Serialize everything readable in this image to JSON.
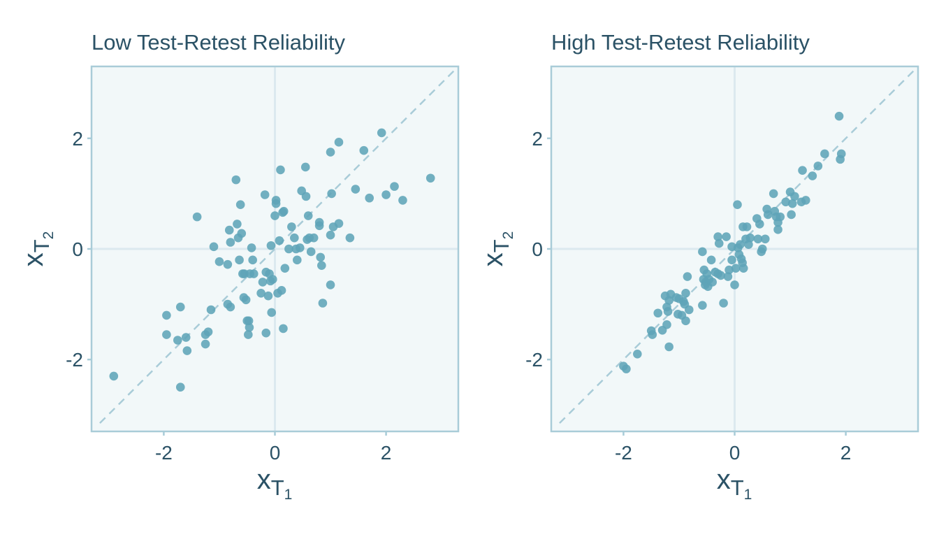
{
  "colors": {
    "panel_bg": "#f2f8f9",
    "panel_border": "#a9ccd8",
    "zero_line": "#dce9ef",
    "diagonal": "#a9ccd8",
    "point": "#5ea4b7",
    "text": "#2b5266"
  },
  "axis_labels": {
    "x": {
      "base": "x",
      "sub": "T",
      "subsub": "1"
    },
    "y": {
      "base": "x",
      "sub": "T",
      "subsub": "2"
    }
  },
  "chart_data": [
    {
      "type": "scatter",
      "title": "Low Test-Retest Reliability",
      "xlim": [
        -3.3,
        3.3
      ],
      "ylim": [
        -3.3,
        3.3
      ],
      "xticks": [
        {
          "value": -2,
          "label": "-2"
        },
        {
          "value": 0,
          "label": "0"
        },
        {
          "value": 2,
          "label": "2"
        }
      ],
      "yticks": [
        {
          "value": -2,
          "label": "-2"
        },
        {
          "value": 0,
          "label": "0"
        },
        {
          "value": 2,
          "label": "2"
        }
      ],
      "reference_line": "y = x",
      "points": [
        [
          -2.9,
          -2.3
        ],
        [
          -1.7,
          -2.5
        ],
        [
          -1.95,
          -1.2
        ],
        [
          -1.95,
          -1.55
        ],
        [
          -1.7,
          -1.05
        ],
        [
          -1.75,
          -1.65
        ],
        [
          -1.6,
          -1.6
        ],
        [
          -1.58,
          -1.84
        ],
        [
          -1.2,
          -1.5
        ],
        [
          -1.25,
          -1.55
        ],
        [
          -1.25,
          -1.72
        ],
        [
          -1.15,
          -1.1
        ],
        [
          -1.4,
          0.58
        ],
        [
          -1.1,
          0.04
        ],
        [
          -1.0,
          -0.23
        ],
        [
          -0.85,
          -0.28
        ],
        [
          -0.82,
          0.34
        ],
        [
          -0.8,
          0.12
        ],
        [
          -0.85,
          -1.0
        ],
        [
          -0.8,
          -1.05
        ],
        [
          -0.7,
          1.25
        ],
        [
          -0.68,
          0.45
        ],
        [
          -0.66,
          0.2
        ],
        [
          -0.64,
          -0.2
        ],
        [
          -0.62,
          0.8
        ],
        [
          -0.6,
          0.28
        ],
        [
          -0.58,
          -0.45
        ],
        [
          -0.56,
          -0.88
        ],
        [
          -0.55,
          -0.45
        ],
        [
          -0.52,
          -0.92
        ],
        [
          -0.5,
          -1.3
        ],
        [
          -0.48,
          -1.55
        ],
        [
          -0.47,
          -1.3
        ],
        [
          -0.46,
          -1.42
        ],
        [
          -0.45,
          -0.45
        ],
        [
          -0.42,
          0.02
        ],
        [
          -0.4,
          -0.2
        ],
        [
          -0.38,
          -0.45
        ],
        [
          -0.25,
          -0.8
        ],
        [
          -0.22,
          -0.6
        ],
        [
          -0.18,
          0.98
        ],
        [
          -0.16,
          -0.42
        ],
        [
          -0.16,
          -1.52
        ],
        [
          -0.12,
          -0.85
        ],
        [
          -0.1,
          -0.45
        ],
        [
          -0.08,
          -0.58
        ],
        [
          -0.07,
          0.06
        ],
        [
          -0.06,
          -1.15
        ],
        [
          -0.04,
          -0.55
        ],
        [
          0.0,
          0.6
        ],
        [
          0.02,
          0.88
        ],
        [
          0.02,
          0.82
        ],
        [
          0.05,
          -0.8
        ],
        [
          0.08,
          0.15
        ],
        [
          0.1,
          1.43
        ],
        [
          0.12,
          -0.75
        ],
        [
          0.14,
          0.66
        ],
        [
          0.15,
          -1.44
        ],
        [
          0.16,
          0.68
        ],
        [
          0.18,
          -0.35
        ],
        [
          0.25,
          0.0
        ],
        [
          0.3,
          0.4
        ],
        [
          0.35,
          0.2
        ],
        [
          0.38,
          0.0
        ],
        [
          0.4,
          -0.2
        ],
        [
          0.45,
          0.02
        ],
        [
          0.48,
          1.05
        ],
        [
          0.55,
          1.48
        ],
        [
          0.56,
          0.95
        ],
        [
          0.58,
          0.17
        ],
        [
          0.6,
          0.6
        ],
        [
          0.62,
          0.2
        ],
        [
          0.65,
          -0.05
        ],
        [
          0.7,
          0.2
        ],
        [
          0.8,
          0.48
        ],
        [
          0.8,
          0.42
        ],
        [
          0.82,
          -0.15
        ],
        [
          0.84,
          -0.3
        ],
        [
          0.86,
          -0.98
        ],
        [
          1.0,
          1.75
        ],
        [
          1.0,
          0.25
        ],
        [
          1.0,
          -0.65
        ],
        [
          1.02,
          1.0
        ],
        [
          1.05,
          0.4
        ],
        [
          1.15,
          1.93
        ],
        [
          1.15,
          0.46
        ],
        [
          1.35,
          0.2
        ],
        [
          1.45,
          1.08
        ],
        [
          1.6,
          1.78
        ],
        [
          1.7,
          0.92
        ],
        [
          1.92,
          2.1
        ],
        [
          2.0,
          0.98
        ],
        [
          2.15,
          1.13
        ],
        [
          2.3,
          0.88
        ],
        [
          2.8,
          1.28
        ]
      ]
    },
    {
      "type": "scatter",
      "title": "High Test-Retest Reliability",
      "xlim": [
        -3.3,
        3.3
      ],
      "ylim": [
        -3.3,
        3.3
      ],
      "xticks": [
        {
          "value": -2,
          "label": "-2"
        },
        {
          "value": 0,
          "label": "0"
        },
        {
          "value": 2,
          "label": "2"
        }
      ],
      "yticks": [
        {
          "value": -2,
          "label": "-2"
        },
        {
          "value": 0,
          "label": "0"
        },
        {
          "value": 2,
          "label": "2"
        }
      ],
      "reference_line": "y = x",
      "points": [
        [
          -2.0,
          -2.12
        ],
        [
          -1.95,
          -2.17
        ],
        [
          -1.75,
          -1.9
        ],
        [
          -1.5,
          -1.48
        ],
        [
          -1.48,
          -1.55
        ],
        [
          -1.38,
          -1.16
        ],
        [
          -1.3,
          -1.47
        ],
        [
          -1.25,
          -0.85
        ],
        [
          -1.22,
          -1.05
        ],
        [
          -1.22,
          -1.37
        ],
        [
          -1.2,
          -1.13
        ],
        [
          -1.18,
          -0.93
        ],
        [
          -1.18,
          -1.77
        ],
        [
          -1.15,
          -0.82
        ],
        [
          -1.05,
          -0.88
        ],
        [
          -1.02,
          -1.18
        ],
        [
          -1.0,
          -0.9
        ],
        [
          -0.95,
          -1.2
        ],
        [
          -0.92,
          -0.95
        ],
        [
          -0.9,
          -1.0
        ],
        [
          -0.88,
          -1.3
        ],
        [
          -0.88,
          -0.8
        ],
        [
          -0.85,
          -0.5
        ],
        [
          -0.82,
          -1.1
        ],
        [
          -0.58,
          -0.05
        ],
        [
          -0.58,
          -1.02
        ],
        [
          -0.56,
          -0.55
        ],
        [
          -0.55,
          -0.38
        ],
        [
          -0.53,
          -0.65
        ],
        [
          -0.52,
          -0.6
        ],
        [
          -0.5,
          -0.45
        ],
        [
          -0.48,
          -0.68
        ],
        [
          -0.46,
          -0.55
        ],
        [
          -0.42,
          -0.2
        ],
        [
          -0.4,
          -0.6
        ],
        [
          -0.35,
          -0.42
        ],
        [
          -0.3,
          0.22
        ],
        [
          -0.3,
          -0.45
        ],
        [
          -0.28,
          0.1
        ],
        [
          -0.25,
          -0.48
        ],
        [
          -0.2,
          -0.98
        ],
        [
          -0.15,
          0.22
        ],
        [
          -0.12,
          -0.5
        ],
        [
          -0.1,
          -0.38
        ],
        [
          -0.05,
          -0.2
        ],
        [
          -0.05,
          0.04
        ],
        [
          0.0,
          -0.65
        ],
        [
          0.02,
          -0.35
        ],
        [
          0.05,
          0.8
        ],
        [
          0.06,
          0.02
        ],
        [
          0.08,
          -0.1
        ],
        [
          0.1,
          0.08
        ],
        [
          0.12,
          -0.18
        ],
        [
          0.14,
          -0.25
        ],
        [
          0.15,
          0.4
        ],
        [
          0.16,
          -0.35
        ],
        [
          0.2,
          0.18
        ],
        [
          0.22,
          0.4
        ],
        [
          0.25,
          0.08
        ],
        [
          0.28,
          0.2
        ],
        [
          0.4,
          0.55
        ],
        [
          0.42,
          0.18
        ],
        [
          0.45,
          0.45
        ],
        [
          0.48,
          -0.05
        ],
        [
          0.5,
          0.0
        ],
        [
          0.55,
          0.18
        ],
        [
          0.58,
          0.72
        ],
        [
          0.6,
          0.62
        ],
        [
          0.7,
          1.0
        ],
        [
          0.72,
          0.68
        ],
        [
          0.75,
          0.58
        ],
        [
          0.78,
          0.35
        ],
        [
          0.78,
          0.48
        ],
        [
          0.82,
          0.58
        ],
        [
          0.92,
          0.85
        ],
        [
          1.0,
          1.03
        ],
        [
          1.02,
          0.62
        ],
        [
          1.04,
          0.82
        ],
        [
          1.08,
          0.95
        ],
        [
          1.2,
          0.85
        ],
        [
          1.22,
          1.42
        ],
        [
          1.28,
          0.88
        ],
        [
          1.4,
          1.32
        ],
        [
          1.5,
          1.5
        ],
        [
          1.62,
          1.72
        ],
        [
          1.88,
          2.4
        ],
        [
          1.9,
          1.62
        ],
        [
          1.92,
          1.72
        ]
      ]
    }
  ]
}
